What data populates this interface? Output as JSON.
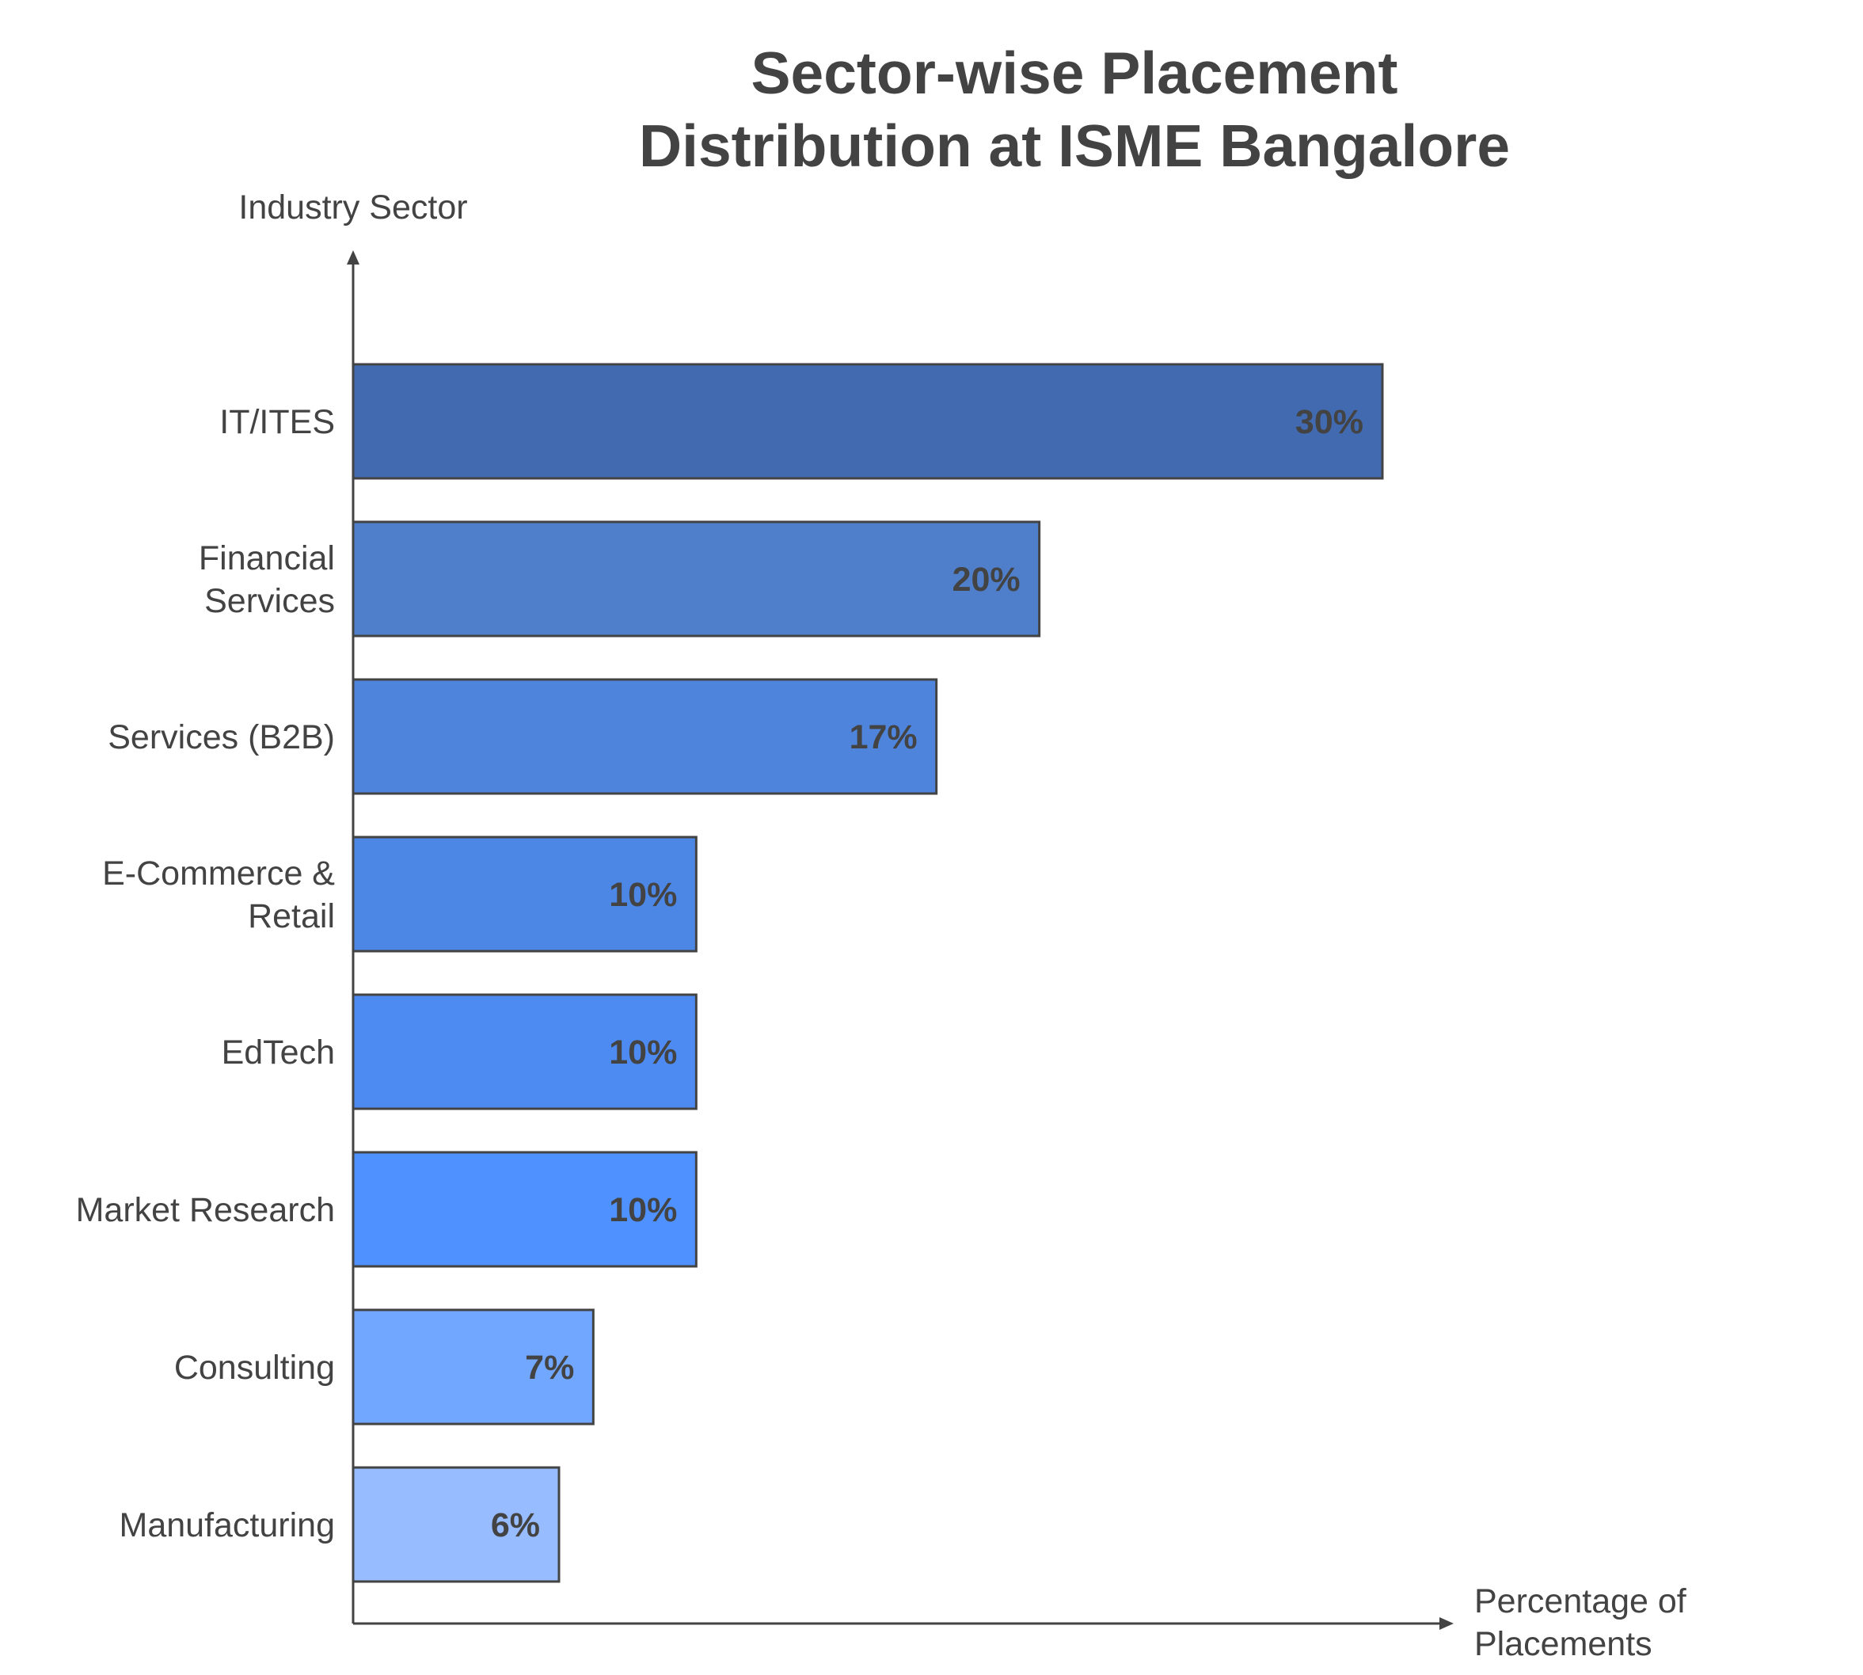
{
  "chart_data": {
    "type": "bar",
    "orientation": "horizontal",
    "title": "Sector-wise Placement Distribution at ISME Bangalore",
    "title_lines": [
      "Sector-wise Placement",
      "Distribution at ISME Bangalore"
    ],
    "ylabel": "Industry Sector",
    "xlabel": "Percentage of Placements",
    "xlabel_lines": [
      "Percentage of",
      "Placements"
    ],
    "xlim": [
      0,
      30
    ],
    "grid": false,
    "legend": "none",
    "categories": [
      "IT/ITES",
      "Financial Services",
      "Services (B2B)",
      "E-Commerce & Retail",
      "EdTech",
      "Market Research",
      "Consulting",
      "Manufacturing"
    ],
    "category_lines": [
      [
        "IT/ITES"
      ],
      [
        "Financial",
        "Services"
      ],
      [
        "Services (B2B)"
      ],
      [
        "E-Commerce &",
        "Retail"
      ],
      [
        "EdTech"
      ],
      [
        "Market Research"
      ],
      [
        "Consulting"
      ],
      [
        "Manufacturing"
      ]
    ],
    "values": [
      30,
      20,
      17,
      10,
      10,
      10,
      7,
      6
    ],
    "value_labels": [
      "30%",
      "20%",
      "17%",
      "10%",
      "10%",
      "10%",
      "7%",
      "6%"
    ],
    "colors": [
      "#426ab0",
      "#4f7ecb",
      "#4f84dc",
      "#4d87e6",
      "#4d8bf3",
      "#4e91ff",
      "#72a7ff",
      "#97bcff"
    ],
    "axis_color": "#434343",
    "bar_stroke": "#434343"
  }
}
